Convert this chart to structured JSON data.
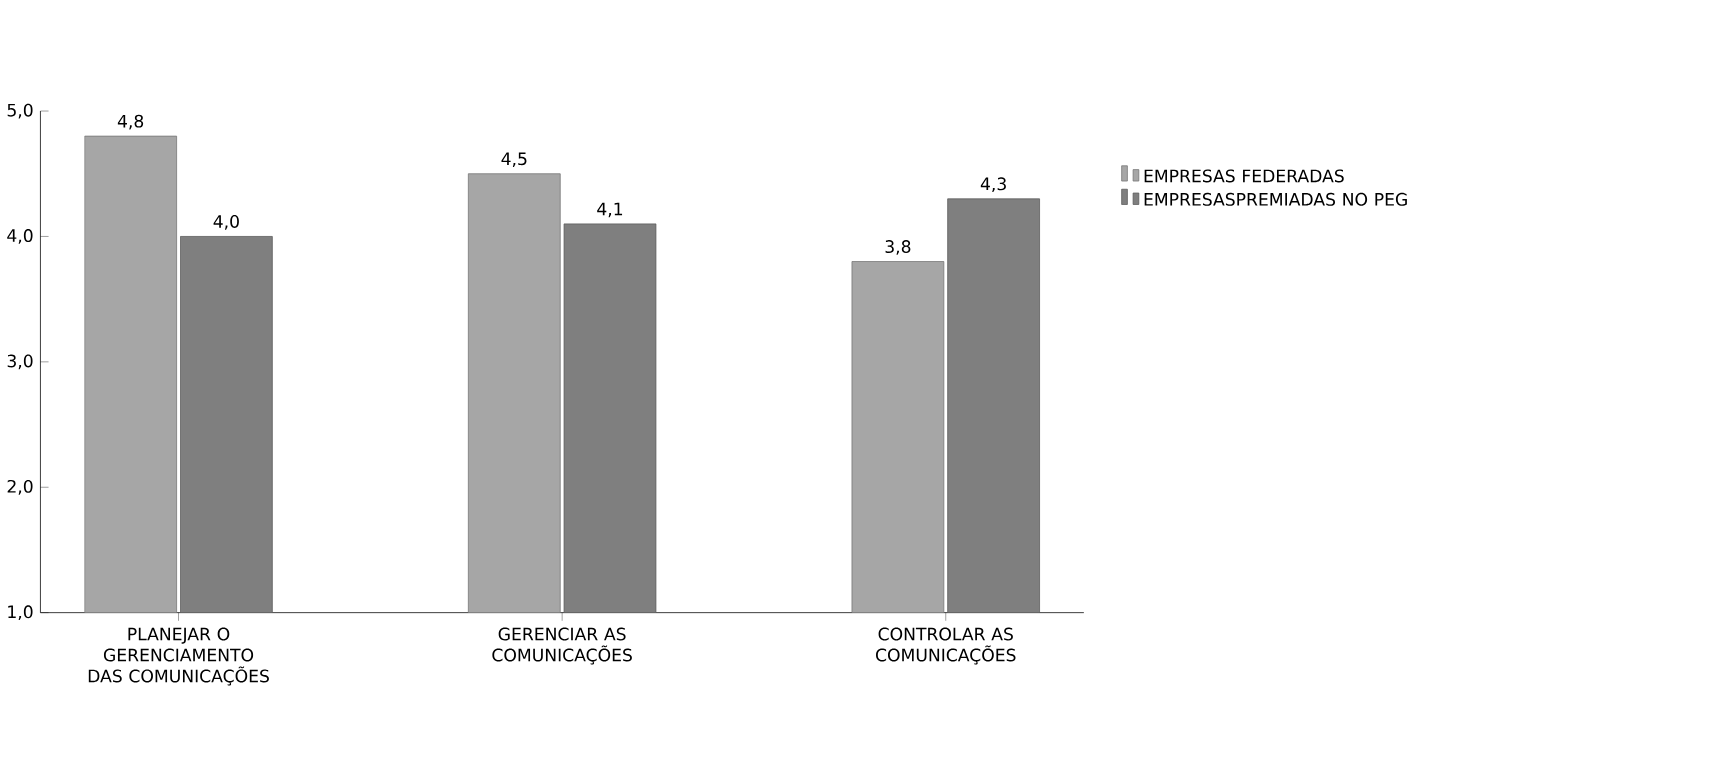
{
  "chart_data": {
    "type": "bar",
    "categories": [
      "PLANEJAR O GERENCIAMENTO DAS COMUNICAÇÕES",
      "GERENCIAR AS COMUNICAÇÕES",
      "CONTROLAR AS COMUNICAÇÕES"
    ],
    "series": [
      {
        "name": "EMPRESAS FEDERADAS",
        "color": "#a6a6a6",
        "values": [
          4.8,
          4.5,
          3.8
        ],
        "value_labels": [
          "4,8",
          "4,5",
          "3,8"
        ]
      },
      {
        "name": "EMPRESASPREMIADAS NO PEG",
        "color": "#7f7f7f",
        "values": [
          4.0,
          4.1,
          4.3
        ],
        "value_labels": [
          "4,0",
          "4,1",
          "4,3"
        ]
      }
    ],
    "ylim": [
      1,
      5
    ],
    "yticks": [
      {
        "value": 1,
        "label": "1,0"
      },
      {
        "value": 2,
        "label": "2,0"
      },
      {
        "value": 3,
        "label": "3,0"
      },
      {
        "value": 4,
        "label": "4,0"
      },
      {
        "value": 5,
        "label": "5,0"
      }
    ],
    "grid": false,
    "legend": "right"
  }
}
